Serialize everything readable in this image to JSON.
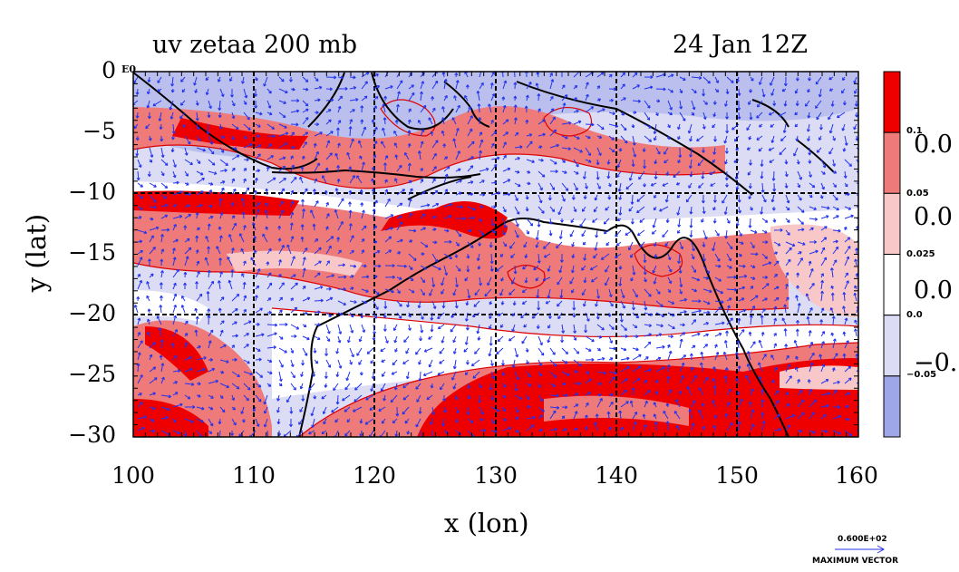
{
  "title_left": "uv zetaa 200 mb",
  "title_right": "24 Jan 12Z",
  "ylabel": "y (lat)",
  "xlabel": "x (lon)",
  "corner_label": "E0",
  "x_ticks": [
    "100",
    "110",
    "120",
    "130",
    "140",
    "150",
    "160"
  ],
  "y_ticks": [
    "0",
    "−5",
    "−10",
    "−15",
    "−20",
    "−25",
    "−30"
  ],
  "colorbar": {
    "colors": [
      "#ee0000",
      "#ee7a7a",
      "#f8c8c8",
      "#ffffff",
      "#dcdcf4",
      "#9ea8e8"
    ],
    "small_labels": [
      "0.1",
      "0.05",
      "0.025",
      "0.0",
      "−0.05"
    ],
    "big_labels": [
      "0.0",
      "0.0",
      "0.0",
      "−0."
    ]
  },
  "reference_vector": {
    "value": "0.600E+02",
    "label": "MAXIMUM VECTOR"
  },
  "map_data": {
    "lon_range": [
      100,
      160
    ],
    "lat_range": [
      -30,
      0
    ],
    "grid_lons": [
      110,
      120,
      130,
      140,
      150
    ],
    "grid_lats": [
      -10,
      -20
    ],
    "fill_colors": {
      "strong_pos": "#ee0000",
      "pos": "#ee7a7a",
      "weak_pos": "#f8c8c8",
      "neutral": "#ffffff",
      "weak_neg": "#dcdcf4",
      "neg": "#9ea8e8"
    },
    "contour_color": "#dd0000",
    "vector_color": "#2233ee"
  }
}
